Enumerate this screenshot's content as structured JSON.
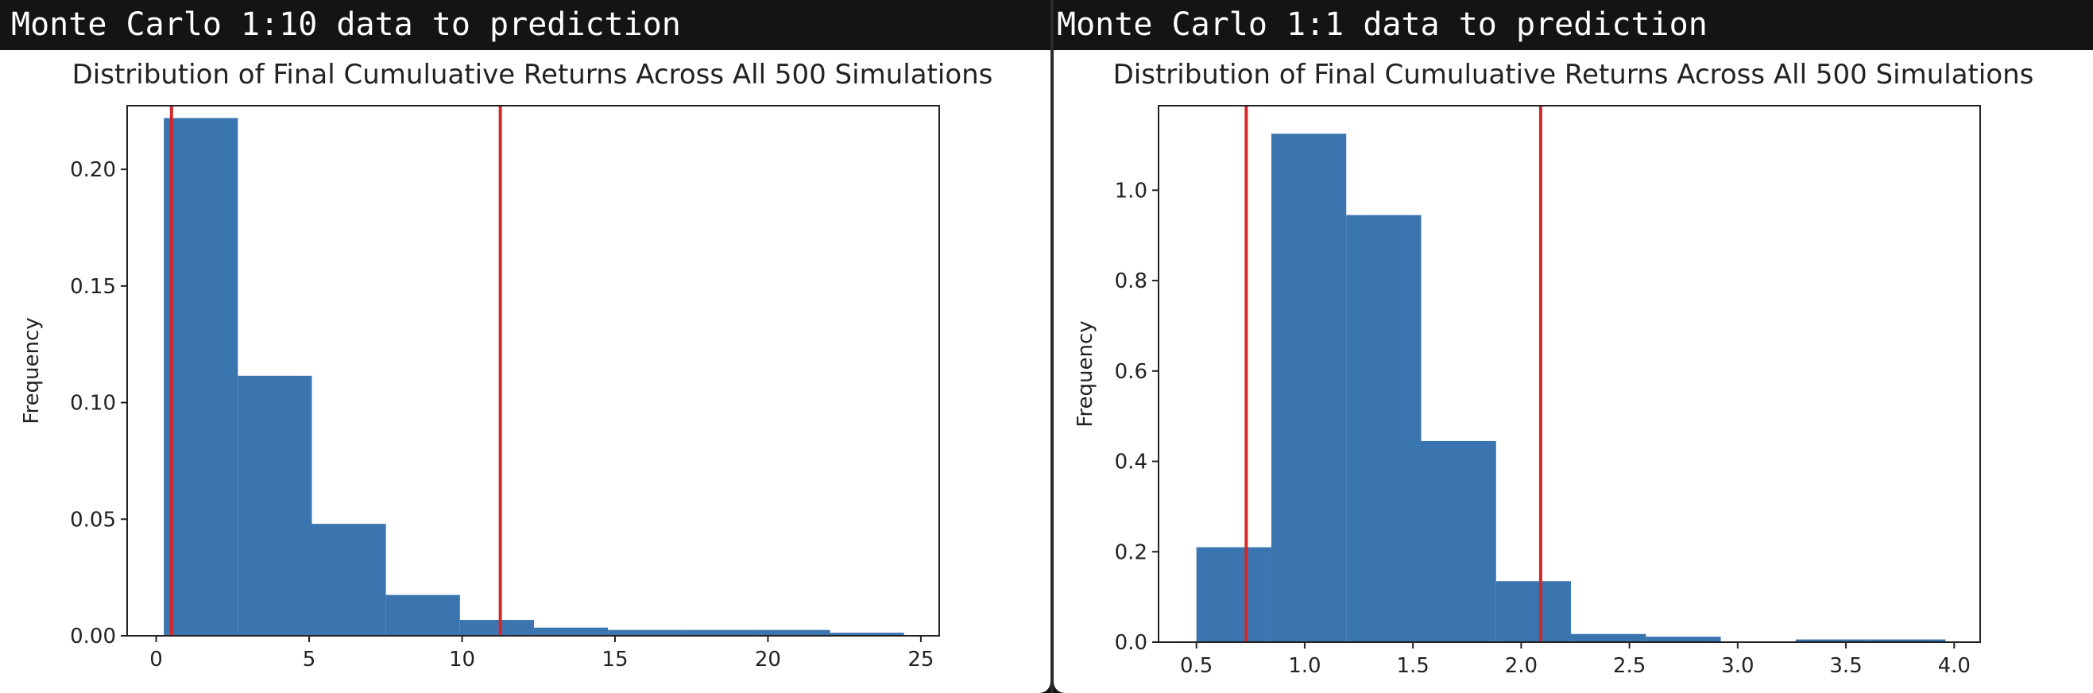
{
  "panels": [
    {
      "window_title": "Monte Carlo 1:10 data to prediction",
      "chart_data": {
        "type": "bar",
        "title": "Distribution of Final Cumuluative Returns Across All 500 Simulations",
        "xlabel": "",
        "ylabel": "Frequency",
        "xlim": [
          -0.95,
          25.6
        ],
        "ylim": [
          0,
          0.2273
        ],
        "xticks": [
          0,
          5,
          10,
          15,
          20,
          25
        ],
        "xtick_labels": [
          "0",
          "5",
          "10",
          "15",
          "20",
          "25"
        ],
        "yticks": [
          0.0,
          0.05,
          0.1,
          0.15,
          0.2
        ],
        "ytick_labels": [
          "0.00",
          "0.05",
          "0.10",
          "0.15",
          "0.20"
        ],
        "bar_color": "#3b75af",
        "bins": [
          {
            "x0": 0.25,
            "x1": 2.67,
            "value": 0.222
          },
          {
            "x0": 2.67,
            "x1": 5.09,
            "value": 0.1115
          },
          {
            "x0": 5.09,
            "x1": 7.51,
            "value": 0.048
          },
          {
            "x0": 7.51,
            "x1": 9.93,
            "value": 0.0175
          },
          {
            "x0": 9.93,
            "x1": 12.35,
            "value": 0.0068
          },
          {
            "x0": 12.35,
            "x1": 14.77,
            "value": 0.0035
          },
          {
            "x0": 14.77,
            "x1": 17.19,
            "value": 0.0025
          },
          {
            "x0": 17.19,
            "x1": 19.61,
            "value": 0.0025
          },
          {
            "x0": 19.61,
            "x1": 22.03,
            "value": 0.0025
          },
          {
            "x0": 22.03,
            "x1": 24.45,
            "value": 0.0013
          }
        ],
        "vlines": [
          {
            "x": 0.5,
            "color": "#d62728"
          },
          {
            "x": 11.25,
            "color": "#d62728"
          }
        ]
      }
    },
    {
      "window_title": "Monte Carlo 1:1 data to prediction",
      "chart_data": {
        "type": "bar",
        "title": "Distribution of Final Cumuluative Returns Across All 500 Simulations",
        "xlabel": "",
        "ylabel": "Frequency",
        "xlim": [
          0.325,
          4.12
        ],
        "ylim": [
          0,
          1.187
        ],
        "xticks": [
          0.5,
          1.0,
          1.5,
          2.0,
          2.5,
          3.0,
          3.5,
          4.0
        ],
        "xtick_labels": [
          "0.5",
          "1.0",
          "1.5",
          "2.0",
          "2.5",
          "3.0",
          "3.5",
          "4.0"
        ],
        "yticks": [
          0.0,
          0.2,
          0.4,
          0.6,
          0.8,
          1.0
        ],
        "ytick_labels": [
          "0.0",
          "0.2",
          "0.4",
          "0.6",
          "0.8",
          "1.0"
        ],
        "bar_color": "#3b75af",
        "bins": [
          {
            "x0": 0.5,
            "x1": 0.846,
            "value": 0.21
          },
          {
            "x0": 0.846,
            "x1": 1.192,
            "value": 1.125
          },
          {
            "x0": 1.192,
            "x1": 1.538,
            "value": 0.945
          },
          {
            "x0": 1.538,
            "x1": 1.884,
            "value": 0.445
          },
          {
            "x0": 1.884,
            "x1": 2.23,
            "value": 0.135
          },
          {
            "x0": 2.23,
            "x1": 2.576,
            "value": 0.018
          },
          {
            "x0": 2.576,
            "x1": 2.922,
            "value": 0.012
          },
          {
            "x0": 2.922,
            "x1": 3.268,
            "value": 0.0
          },
          {
            "x0": 3.268,
            "x1": 3.614,
            "value": 0.006
          },
          {
            "x0": 3.614,
            "x1": 3.96,
            "value": 0.006
          }
        ],
        "vlines": [
          {
            "x": 0.73,
            "color": "#d62728"
          },
          {
            "x": 2.09,
            "color": "#d62728"
          }
        ]
      }
    }
  ]
}
